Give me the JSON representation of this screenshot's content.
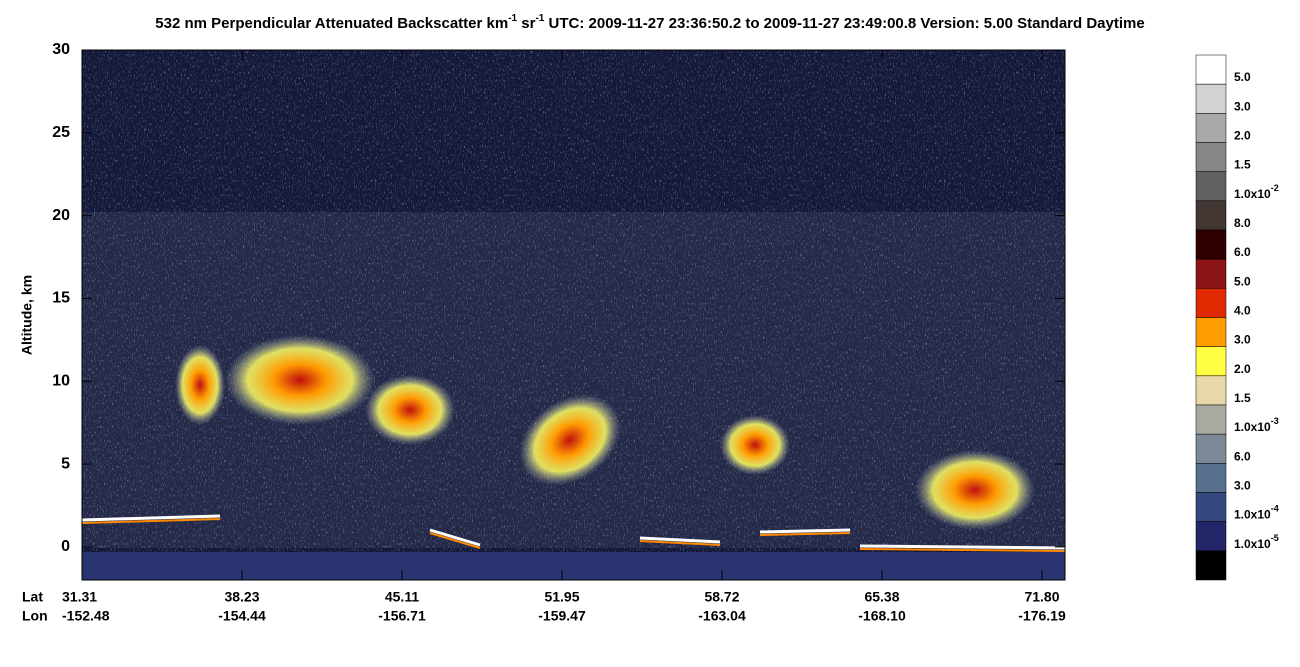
{
  "chart_data": {
    "type": "curtain",
    "title_parts": [
      "532 nm Perpendicular Attenuated Backscatter km",
      "-1",
      " sr",
      "-1",
      "  UTC: 2009-11-27 23:36:50.2 to 2009-11-27 23:49:00.8  Version: 5.00 Standard Daytime"
    ],
    "ylabel": "Altitude, km",
    "ylim": [
      -2,
      30
    ],
    "yticks": [
      0,
      5,
      10,
      15,
      20,
      25,
      30
    ],
    "x_row_labels": [
      "Lat",
      "Lon"
    ],
    "lat_ticks": [
      31.31,
      38.23,
      45.11,
      51.95,
      58.72,
      65.38,
      {
        "value": 71.8,
        "label": "71.80"
      }
    ],
    "lon_ticks": [
      -152.48,
      -154.44,
      -156.71,
      -159.47,
      -163.04,
      -168.1,
      -176.19
    ],
    "lon_tick_labels": [
      "-152.48",
      "-154.44",
      "-156.71",
      "-159.47",
      "-163.04",
      "-168.10",
      "-176.19"
    ],
    "colorbar": {
      "colors": [
        "#ffffff",
        "#d2d2d2",
        "#a8a8a8",
        "#878787",
        "#606060",
        "#433733",
        "#2e0000",
        "#8c1414",
        "#e12a00",
        "#ff9c00",
        "#ffff44",
        "#e8d8aa",
        "#a8aaa2",
        "#7c8a98",
        "#56708e",
        "#34487e",
        "#222668",
        "#000000"
      ],
      "labels": [
        {
          "text": "5.0"
        },
        {
          "text": "3.0"
        },
        {
          "text": "2.0"
        },
        {
          "text": "1.5"
        },
        {
          "text": "1.0x10",
          "sup": "-2"
        },
        {
          "text": "8.0"
        },
        {
          "text": "6.0"
        },
        {
          "text": "5.0"
        },
        {
          "text": "4.0"
        },
        {
          "text": "3.0"
        },
        {
          "text": "2.0"
        },
        {
          "text": "1.5"
        },
        {
          "text": "1.0x10",
          "sup": "-3"
        },
        {
          "text": "6.0"
        },
        {
          "text": "3.0"
        },
        {
          "text": "1.0x10",
          "sup": "-4"
        },
        {
          "text": "1.0x10",
          "sup": "-5"
        }
      ]
    }
  }
}
